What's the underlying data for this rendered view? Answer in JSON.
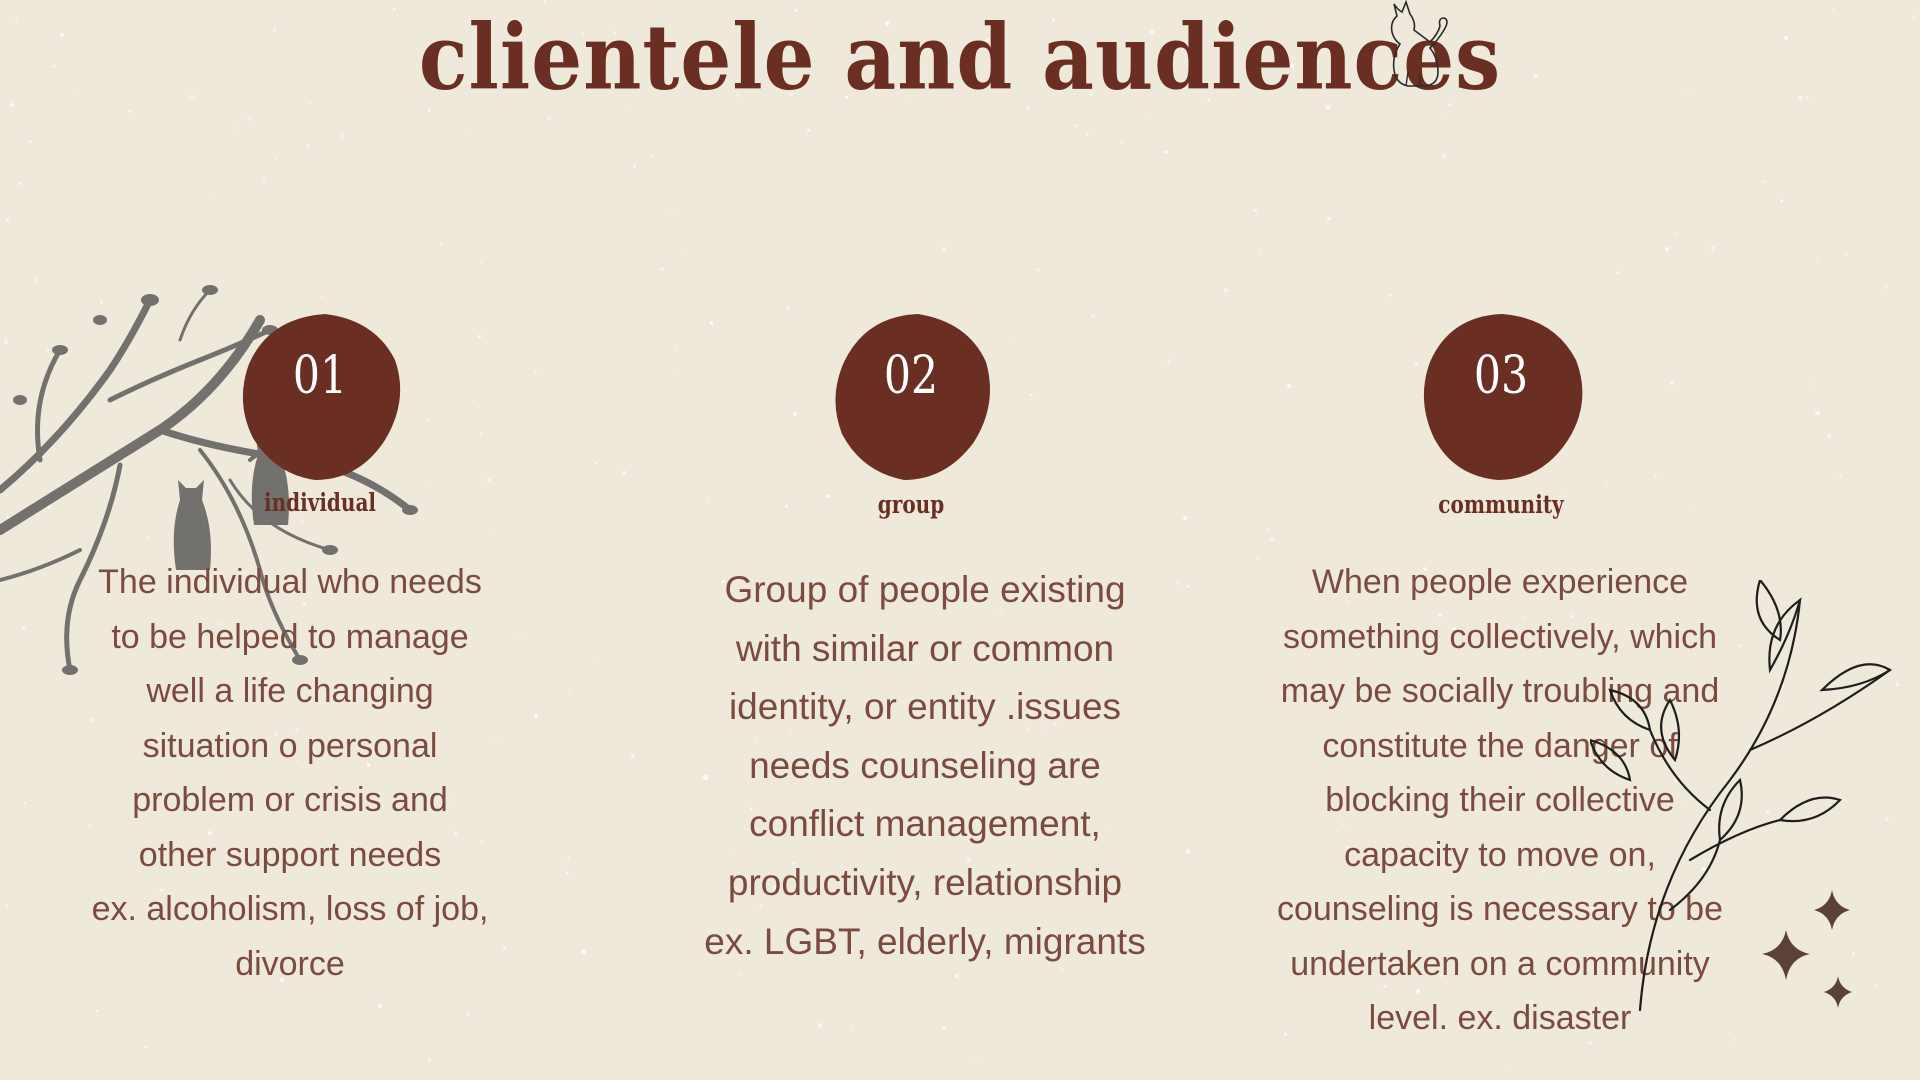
{
  "title": "clientele and audiences",
  "columns": [
    {
      "number": "01",
      "heading": "individual",
      "body_lines": [
        "The individual who needs",
        "to be helped to manage",
        "well a life changing",
        "situation o personal",
        "problem or crisis and",
        "other support needs",
        "ex. alcoholism, loss of job,",
        "divorce"
      ]
    },
    {
      "number": "02",
      "heading": "group",
      "body_lines": [
        "Group of people existing",
        "with similar or common",
        "identity, or entity .issues",
        "needs counseling are",
        "conflict management,",
        "productivity, relationship",
        "ex. LGBT, elderly, migrants"
      ]
    },
    {
      "number": "03",
      "heading": "community",
      "body_lines": [
        "When people experience",
        "something collectively, which",
        "may be socially troubling and",
        "constitute the danger of",
        "blocking their collective",
        "capacity to move on,",
        "counseling is necessary to be",
        "undertaken on a community",
        "level. ex. disaster"
      ]
    }
  ],
  "decorations": {
    "top_right": "cat-outline-icon",
    "left": "tree-with-cats-silhouette",
    "bottom_right": "leafy-branch-line-art",
    "sparkles": "four-point-star-icon"
  },
  "colors": {
    "background": "#efe9dc",
    "accent": "#6a2f22",
    "body_text": "#7b4b40"
  }
}
